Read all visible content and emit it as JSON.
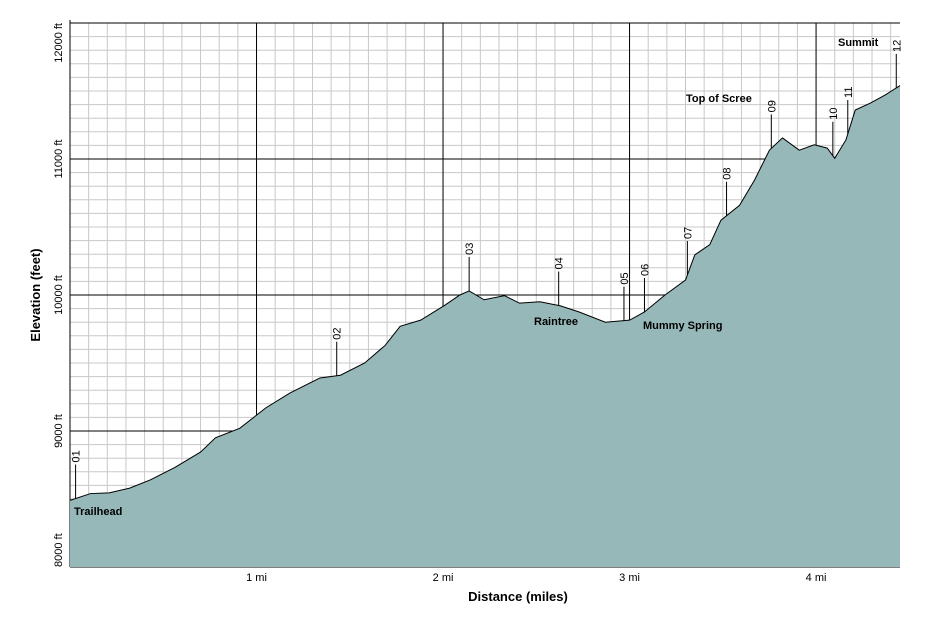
{
  "chart_data": {
    "type": "area",
    "x_label": "Distance (miles)",
    "y_label": "Elevation (feet)",
    "x": [
      0,
      0.11,
      0.21,
      0.32,
      0.43,
      0.56,
      0.7,
      0.78,
      0.91,
      1.05,
      1.18,
      1.34,
      1.45,
      1.58,
      1.69,
      1.77,
      1.88,
      2.01,
      2.09,
      2.14,
      2.22,
      2.33,
      2.41,
      2.52,
      2.63,
      2.73,
      2.87,
      3.0,
      3.08,
      3.19,
      3.3,
      3.35,
      3.43,
      3.49,
      3.59,
      3.67,
      3.75,
      3.82,
      3.91,
      3.99,
      4.06,
      4.1,
      4.16,
      4.21,
      4.29,
      4.37,
      4.45
    ],
    "values": [
      8490,
      8540,
      8545,
      8580,
      8640,
      8730,
      8845,
      8950,
      9020,
      9170,
      9280,
      9390,
      9410,
      9500,
      9630,
      9770,
      9815,
      9925,
      10000,
      10030,
      9965,
      9995,
      9940,
      9950,
      9920,
      9875,
      9800,
      9815,
      9875,
      10000,
      10110,
      10295,
      10370,
      10550,
      10660,
      10845,
      11065,
      11155,
      11065,
      11105,
      11080,
      11005,
      11140,
      11360,
      11410,
      11470,
      11540
    ],
    "color": "#97b8b8",
    "xlim": [
      0,
      4.45
    ],
    "ylim": [
      8000,
      12000
    ],
    "xticks": [
      {
        "value": 1,
        "label": "1 mi"
      },
      {
        "value": 2,
        "label": "2 mi"
      },
      {
        "value": 3,
        "label": "3 mi"
      },
      {
        "value": 4,
        "label": "4 mi"
      }
    ],
    "yticks": [
      {
        "value": 8000,
        "label": "8000 ft"
      },
      {
        "value": 9000,
        "label": "9000 ft"
      },
      {
        "value": 10000,
        "label": "10000 ft"
      },
      {
        "value": 11000,
        "label": "11000 ft"
      },
      {
        "value": 12000,
        "label": "12000 ft"
      }
    ],
    "grid": true,
    "minor_grid": {
      "x": 0.1,
      "y": 100
    },
    "waypoints": [
      {
        "label": "01",
        "x": 0.03
      },
      {
        "label": "02",
        "x": 1.43
      },
      {
        "label": "03",
        "x": 2.14
      },
      {
        "label": "04",
        "x": 2.62
      },
      {
        "label": "05",
        "x": 2.97
      },
      {
        "label": "06",
        "x": 3.08
      },
      {
        "label": "07",
        "x": 3.31
      },
      {
        "label": "08",
        "x": 3.52
      },
      {
        "label": "09",
        "x": 3.76
      },
      {
        "label": "10",
        "x": 4.09
      },
      {
        "label": "11",
        "x": 4.17
      },
      {
        "label": "12",
        "x": 4.43
      }
    ],
    "annotations": [
      "Trailhead",
      "Raintree",
      "Mummy Spring",
      "Top of Scree",
      "Summit"
    ]
  }
}
